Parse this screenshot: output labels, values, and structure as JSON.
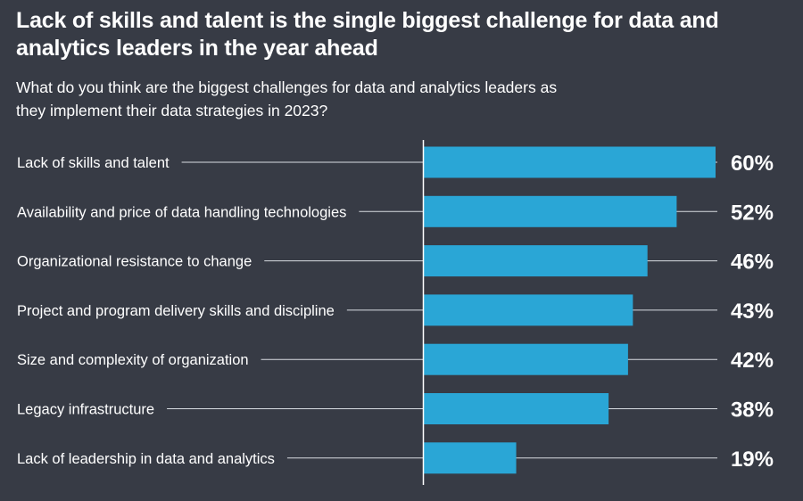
{
  "title": "Lack of skills and talent is the single biggest challenge for data and analytics leaders in the year ahead",
  "subtitle": "What do you think are the biggest challenges for data and analytics leaders as they implement their data strategies in 2023?",
  "colors": {
    "background": "#373b45",
    "bar": "#2aa6d6",
    "text": "#ffffff",
    "leader_line": "#d9dce2"
  },
  "chart_data": {
    "type": "bar",
    "orientation": "horizontal",
    "title": "Lack of skills and talent is the single biggest challenge for data and analytics leaders in the year ahead",
    "subtitle": "What do you think are the biggest challenges for data and analytics leaders as they implement their data strategies in 2023?",
    "categories": [
      "Lack of skills and talent",
      "Availability and price of data handling technologies",
      "Organizational resistance to change",
      "Project and program delivery skills and discipline",
      "Size and complexity of organization",
      "Legacy infrastructure",
      "Lack of leadership in data and analytics"
    ],
    "values": [
      60,
      52,
      46,
      43,
      42,
      38,
      19
    ],
    "value_labels": [
      "60%",
      "52%",
      "46%",
      "43%",
      "42%",
      "38%",
      "19%"
    ],
    "unit": "%",
    "xlim": [
      0,
      60
    ],
    "xlabel": "",
    "ylabel": "",
    "grid": false
  }
}
